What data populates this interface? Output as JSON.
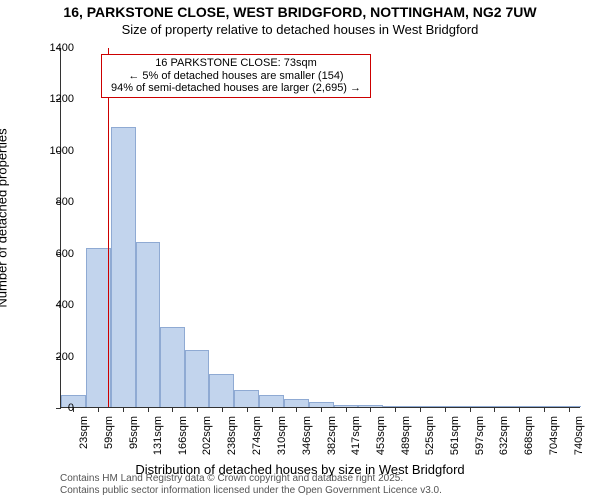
{
  "title": "16, PARKSTONE CLOSE, WEST BRIDGFORD, NOTTINGHAM, NG2 7UW",
  "subtitle": "Size of property relative to detached houses in West Bridgford",
  "chart": {
    "type": "histogram",
    "ylabel": "Number of detached properties",
    "xlabel": "Distribution of detached houses by size in West Bridgford",
    "xlim": [
      5,
      758
    ],
    "ylim": [
      0,
      1400
    ],
    "yticks": [
      0,
      200,
      400,
      600,
      800,
      1000,
      1200,
      1400
    ],
    "xticks": [
      {
        "v": 23,
        "label": "23sqm"
      },
      {
        "v": 59,
        "label": "59sqm"
      },
      {
        "v": 95,
        "label": "95sqm"
      },
      {
        "v": 131,
        "label": "131sqm"
      },
      {
        "v": 166,
        "label": "166sqm"
      },
      {
        "v": 202,
        "label": "202sqm"
      },
      {
        "v": 238,
        "label": "238sqm"
      },
      {
        "v": 274,
        "label": "274sqm"
      },
      {
        "v": 310,
        "label": "310sqm"
      },
      {
        "v": 346,
        "label": "346sqm"
      },
      {
        "v": 382,
        "label": "382sqm"
      },
      {
        "v": 417,
        "label": "417sqm"
      },
      {
        "v": 453,
        "label": "453sqm"
      },
      {
        "v": 489,
        "label": "489sqm"
      },
      {
        "v": 525,
        "label": "525sqm"
      },
      {
        "v": 561,
        "label": "561sqm"
      },
      {
        "v": 597,
        "label": "597sqm"
      },
      {
        "v": 632,
        "label": "632sqm"
      },
      {
        "v": 668,
        "label": "668sqm"
      },
      {
        "v": 704,
        "label": "704sqm"
      },
      {
        "v": 740,
        "label": "740sqm"
      }
    ],
    "bars": [
      {
        "x0": 5,
        "x1": 41,
        "y": 45
      },
      {
        "x0": 41,
        "x1": 77,
        "y": 620
      },
      {
        "x0": 77,
        "x1": 113,
        "y": 1090
      },
      {
        "x0": 113,
        "x1": 149,
        "y": 640
      },
      {
        "x0": 149,
        "x1": 184,
        "y": 310
      },
      {
        "x0": 184,
        "x1": 220,
        "y": 220
      },
      {
        "x0": 220,
        "x1": 256,
        "y": 130
      },
      {
        "x0": 256,
        "x1": 292,
        "y": 65
      },
      {
        "x0": 292,
        "x1": 328,
        "y": 45
      },
      {
        "x0": 328,
        "x1": 364,
        "y": 30
      },
      {
        "x0": 364,
        "x1": 400,
        "y": 18
      },
      {
        "x0": 400,
        "x1": 435,
        "y": 8
      },
      {
        "x0": 435,
        "x1": 471,
        "y": 6
      },
      {
        "x0": 471,
        "x1": 507,
        "y": 5
      },
      {
        "x0": 507,
        "x1": 543,
        "y": 4
      },
      {
        "x0": 543,
        "x1": 579,
        "y": 3
      },
      {
        "x0": 579,
        "x1": 615,
        "y": 2
      },
      {
        "x0": 615,
        "x1": 650,
        "y": 2
      },
      {
        "x0": 650,
        "x1": 686,
        "y": 2
      },
      {
        "x0": 686,
        "x1": 722,
        "y": 2
      },
      {
        "x0": 722,
        "x1": 758,
        "y": 2
      }
    ],
    "bar_fill": "#c2d4ed",
    "bar_stroke": "#8faad3",
    "marker": {
      "x": 73,
      "color": "#cc0000",
      "width": 1
    },
    "background_color": "#ffffff",
    "axis_color": "#333333",
    "tick_fontsize": 11,
    "label_fontsize": 13,
    "title_fontsize": 14
  },
  "annotation": {
    "line1": "16 PARKSTONE CLOSE: 73sqm",
    "line2": "← 5% of detached houses are smaller (154)",
    "line3": "94% of semi-detached houses are larger (2,695) →",
    "border_color": "#cc0000",
    "border_width": 1,
    "fontsize": 11
  },
  "footer": {
    "line1": "Contains HM Land Registry data © Crown copyright and database right 2025.",
    "line2": "Contains public sector information licensed under the Open Government Licence v3.0.",
    "fontsize": 10,
    "color": "#555555"
  }
}
